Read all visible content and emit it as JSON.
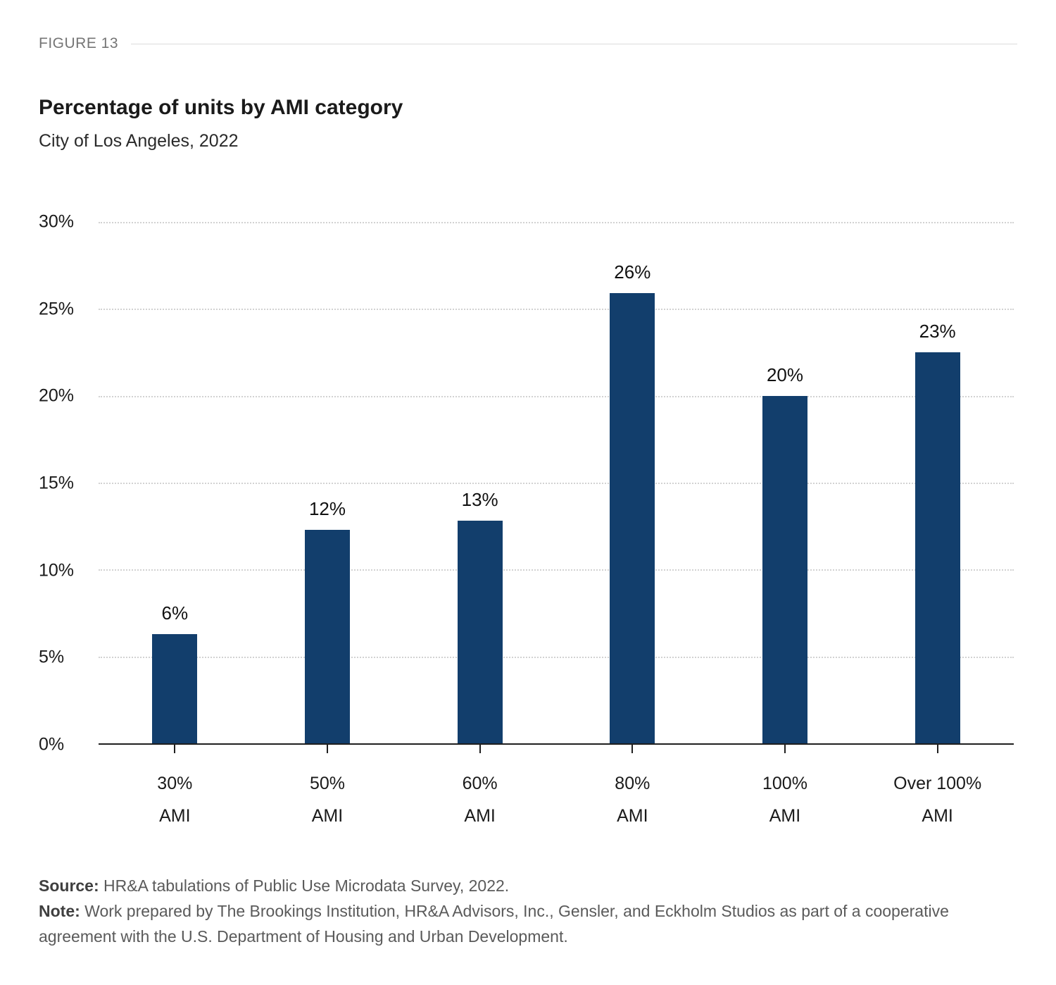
{
  "figure_label": "FIGURE 13",
  "title": "Percentage of units by AMI category",
  "subtitle": "City of Los Angeles, 2022",
  "chart_data": {
    "type": "bar",
    "title": "Percentage of units by AMI category",
    "subtitle": "City of Los Angeles, 2022",
    "categories": [
      "30% AMI",
      "50% AMI",
      "60% AMI",
      "80% AMI",
      "100% AMI",
      "Over 100% AMI"
    ],
    "category_lines": [
      [
        "30%",
        "AMI"
      ],
      [
        "50%",
        "AMI"
      ],
      [
        "60%",
        "AMI"
      ],
      [
        "80%",
        "AMI"
      ],
      [
        "100%",
        "AMI"
      ],
      [
        "Over 100%",
        "AMI"
      ]
    ],
    "values": [
      6.3,
      12.3,
      12.8,
      25.9,
      20.0,
      22.5
    ],
    "value_labels": [
      "6%",
      "12%",
      "13%",
      "26%",
      "20%",
      "23%"
    ],
    "xlabel": "",
    "ylabel": "",
    "ylim": [
      0,
      30
    ],
    "yticks": [
      {
        "value": 0,
        "label": "0%"
      },
      {
        "value": 5,
        "label": "5%"
      },
      {
        "value": 10,
        "label": "10%"
      },
      {
        "value": 15,
        "label": "15%"
      },
      {
        "value": 20,
        "label": "20%"
      },
      {
        "value": 25,
        "label": "25%"
      },
      {
        "value": 30,
        "label": "30%"
      }
    ],
    "grid": "horizontal-dotted",
    "legend": "none",
    "bar_color": "#123e6c"
  },
  "footer": {
    "source_label": "Source:",
    "source_text": " HR&A tabulations of Public Use Microdata Survey, 2022.",
    "note_label": "Note:",
    "note_text": " Work prepared by The Brookings Institution, HR&A Advisors, Inc., Gensler, and Eckholm Studios as part of a cooperative agreement with the U.S. Department of Housing and Urban Development."
  }
}
